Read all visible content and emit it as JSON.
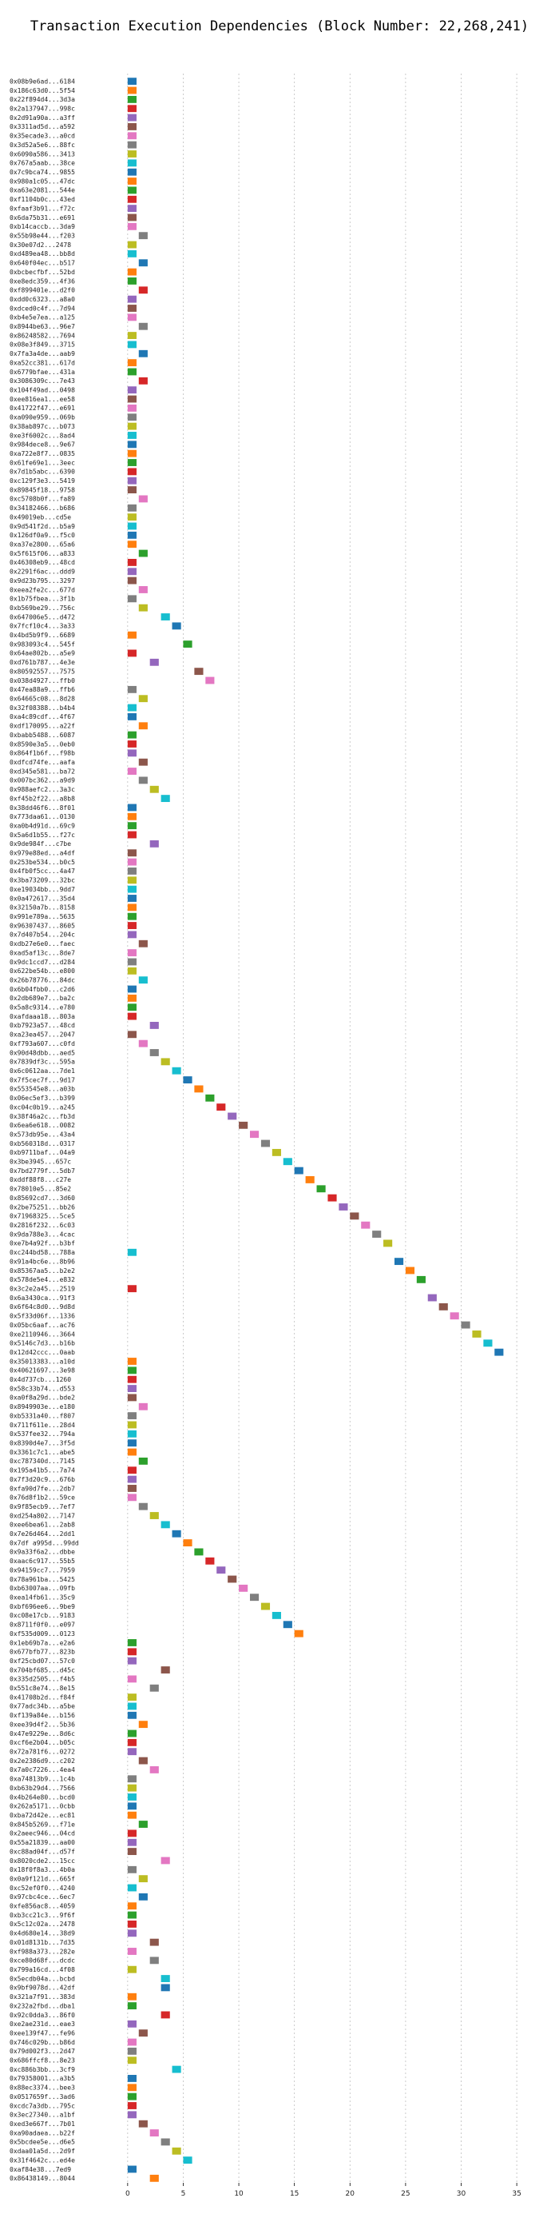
{
  "chart_data": {
    "type": "bar",
    "title": "Transaction Execution Dependencies (Block Number: 22,268,241)",
    "xlabel": "",
    "ylabel": "",
    "xlim": [
      -2,
      36.5
    ],
    "xticks": [
      0,
      5,
      10,
      15,
      20,
      25,
      30,
      35
    ],
    "grid": true,
    "bar_width": 1,
    "palette": [
      "#1f77b4",
      "#ff7f0e",
      "#2ca02c",
      "#d62728",
      "#9467bd",
      "#8c564b",
      "#e377c2",
      "#7f7f7f",
      "#bcbd22",
      "#17becf"
    ],
    "transactions": [
      {
        "label": "0x08b9e6ad...6184",
        "start": 0
      },
      {
        "label": "0x186c63d0...5f54",
        "start": 0
      },
      {
        "label": "0x22f894d4...3d3a",
        "start": 0
      },
      {
        "label": "0x2a137947...998c",
        "start": 0
      },
      {
        "label": "0x2d91a90a...a3ff",
        "start": 0
      },
      {
        "label": "0x3311ad5d...a592",
        "start": 0
      },
      {
        "label": "0x35ecade3...a0cd",
        "start": 0
      },
      {
        "label": "0x3d52a5e6...88fc",
        "start": 0
      },
      {
        "label": "0x6090a586...3413",
        "start": 0
      },
      {
        "label": "0x767a5aab...38ce",
        "start": 0
      },
      {
        "label": "0x7c9bca74...9855",
        "start": 0
      },
      {
        "label": "0x980a1c05...47dc",
        "start": 0
      },
      {
        "label": "0xa63e2081...544e",
        "start": 0
      },
      {
        "label": "0xf1104b0c...43ed",
        "start": 0
      },
      {
        "label": "0xfaaf3b91...f72c",
        "start": 0
      },
      {
        "label": "0x6da75b31...e691",
        "start": 0
      },
      {
        "label": "0xb14caccb...3da9",
        "start": 0
      },
      {
        "label": "0x55b98e44...f203",
        "start": 1
      },
      {
        "label": "0x30e07d2...2478",
        "start": 0
      },
      {
        "label": "0xd489ea48...bb8d",
        "start": 0
      },
      {
        "label": "0x640f04ec...b517",
        "start": 1
      },
      {
        "label": "0xbcbecfbf...52bd",
        "start": 0
      },
      {
        "label": "0xe8edc359...4f36",
        "start": 0
      },
      {
        "label": "0xf899401e...d2f0",
        "start": 1
      },
      {
        "label": "0xdd0c6323...a8a0",
        "start": 0
      },
      {
        "label": "0xdced0c4f...7d94",
        "start": 0
      },
      {
        "label": "0xb4e5e7ea...a125",
        "start": 0
      },
      {
        "label": "0x8944be63...96e7",
        "start": 1
      },
      {
        "label": "0x86248582...7694",
        "start": 0
      },
      {
        "label": "0x08e3f849...3715",
        "start": 0
      },
      {
        "label": "0x7fa3a4de...aab9",
        "start": 1
      },
      {
        "label": "0xa52cc381...617d",
        "start": 0
      },
      {
        "label": "0x6779bfae...431a",
        "start": 0
      },
      {
        "label": "0x3086309c...7e43",
        "start": 1
      },
      {
        "label": "0x104f49ad...0498",
        "start": 0
      },
      {
        "label": "0xee816ea1...ee58",
        "start": 0
      },
      {
        "label": "0x41722f47...e691",
        "start": 0
      },
      {
        "label": "0xa090e959...069b",
        "start": 0
      },
      {
        "label": "0x38ab897c...b073",
        "start": 0
      },
      {
        "label": "0xe3f6002c...8ad4",
        "start": 0
      },
      {
        "label": "0x984dece8...9e67",
        "start": 0
      },
      {
        "label": "0xa722e8f7...0835",
        "start": 0
      },
      {
        "label": "0x61fe69e1...3eec",
        "start": 0
      },
      {
        "label": "0x7d1b5abc...6390",
        "start": 0
      },
      {
        "label": "0xc129f3e3...5419",
        "start": 0
      },
      {
        "label": "0x89845f18...9758",
        "start": 0
      },
      {
        "label": "0xc5708b0f...fa89",
        "start": 1
      },
      {
        "label": "0x34182466...b686",
        "start": 0
      },
      {
        "label": "0x49019eb...cd5e",
        "start": 0
      },
      {
        "label": "0x9d541f2d...b5a9",
        "start": 0
      },
      {
        "label": "0x126df0a9...f5c0",
        "start": 0
      },
      {
        "label": "0xa37e2800...65a6",
        "start": 0
      },
      {
        "label": "0x5f615f06...a833",
        "start": 1
      },
      {
        "label": "0x46308eb9...48cd",
        "start": 0
      },
      {
        "label": "0x2291f6ac...ddd9",
        "start": 0
      },
      {
        "label": "0x9d23b795...3297",
        "start": 0
      },
      {
        "label": "0xeea2fe2c...677d",
        "start": 1
      },
      {
        "label": "0x1b75fbea...3f1b",
        "start": 0
      },
      {
        "label": "0xb569be29...756c",
        "start": 1
      },
      {
        "label": "0x647006e5...d472",
        "start": 3
      },
      {
        "label": "0x7fcf10c4...3a33",
        "start": 4
      },
      {
        "label": "0x4bd5b9f9...6689",
        "start": 0
      },
      {
        "label": "0x983093c4...545f",
        "start": 5
      },
      {
        "label": "0x64ae802b...a5e9",
        "start": 0
      },
      {
        "label": "0xd761b787...4e3e",
        "start": 2
      },
      {
        "label": "0x80592557...7575",
        "start": 6
      },
      {
        "label": "0x038d4927...ffb0",
        "start": 7
      },
      {
        "label": "0x47ea88a9...ffb6",
        "start": 0
      },
      {
        "label": "0x64665c08...8d28",
        "start": 1
      },
      {
        "label": "0x32f08388...b4b4",
        "start": 0
      },
      {
        "label": "0xa4c89cdf...4f67",
        "start": 0
      },
      {
        "label": "0xdf170095...a22f",
        "start": 1
      },
      {
        "label": "0xbabb5488...6087",
        "start": 0
      },
      {
        "label": "0x8590e3a5...0eb0",
        "start": 0
      },
      {
        "label": "0x864f1b6f...f98b",
        "start": 0
      },
      {
        "label": "0xdfcd74fe...aafa",
        "start": 1
      },
      {
        "label": "0xd345e581...ba72",
        "start": 0
      },
      {
        "label": "0x007bc362...a9d9",
        "start": 1
      },
      {
        "label": "0x988aefc2...3a3c",
        "start": 2
      },
      {
        "label": "0xf45b2f22...a8b8",
        "start": 3
      },
      {
        "label": "0x38dd46f6...8f01",
        "start": 0
      },
      {
        "label": "0x773daa61...0130",
        "start": 0
      },
      {
        "label": "0xa0b4d91d...69c9",
        "start": 0
      },
      {
        "label": "0x5a6d1b55...f27c",
        "start": 0
      },
      {
        "label": "0x9de984f...c7be",
        "start": 2
      },
      {
        "label": "0x979e88ed...a4df",
        "start": 0
      },
      {
        "label": "0x253be534...b0c5",
        "start": 0
      },
      {
        "label": "0x4fb0f5cc...4a47",
        "start": 0
      },
      {
        "label": "0x3ba73209...32bc",
        "start": 0
      },
      {
        "label": "0xe19034bb...9dd7",
        "start": 0
      },
      {
        "label": "0x0a472617...35d4",
        "start": 0
      },
      {
        "label": "0x32150a7b...8158",
        "start": 0
      },
      {
        "label": "0x991e789a...5635",
        "start": 0
      },
      {
        "label": "0x96307437...8605",
        "start": 0
      },
      {
        "label": "0x7d407b54...204c",
        "start": 0
      },
      {
        "label": "0xdb27e6e0...faec",
        "start": 1
      },
      {
        "label": "0xad5af13c...8de7",
        "start": 0
      },
      {
        "label": "0x9dc1ccd7...d284",
        "start": 0
      },
      {
        "label": "0x622be54b...e800",
        "start": 0
      },
      {
        "label": "0x26b78776...84dc",
        "start": 1
      },
      {
        "label": "0x6b04fbb0...c2d6",
        "start": 0
      },
      {
        "label": "0x2db689e7...ba2c",
        "start": 0
      },
      {
        "label": "0x5a8c9314...e780",
        "start": 0
      },
      {
        "label": "0xafdaaa18...803a",
        "start": 0
      },
      {
        "label": "0xb7923a57...48cd",
        "start": 2
      },
      {
        "label": "0xa23ea457...2047",
        "start": 0
      },
      {
        "label": "0xf793a607...c0fd",
        "start": 1
      },
      {
        "label": "0x90d48dbb...aed5",
        "start": 2
      },
      {
        "label": "0x7839df3c...595a",
        "start": 3
      },
      {
        "label": "0x6c0612aa...7de1",
        "start": 4
      },
      {
        "label": "0x7f5cec7f...9d17",
        "start": 5
      },
      {
        "label": "0x553545e8...a03b",
        "start": 6
      },
      {
        "label": "0x06ec5ef3...b399",
        "start": 7
      },
      {
        "label": "0xc04c0b19...a245",
        "start": 8
      },
      {
        "label": "0x38f46a2c...fb3d",
        "start": 9
      },
      {
        "label": "0x6ea6e618...0082",
        "start": 10
      },
      {
        "label": "0x573db95e...43a4",
        "start": 11
      },
      {
        "label": "0xb560318d...0317",
        "start": 12
      },
      {
        "label": "0xb9711baf...04a9",
        "start": 13
      },
      {
        "label": "0x3be3945...657c",
        "start": 14
      },
      {
        "label": "0x7bd2779f...5db7",
        "start": 15
      },
      {
        "label": "0xddf88f8...c27e",
        "start": 16
      },
      {
        "label": "0x78010e5...85e2",
        "start": 17
      },
      {
        "label": "0x85692cd7...3d60",
        "start": 18
      },
      {
        "label": "0x2be75251...bb26",
        "start": 19
      },
      {
        "label": "0x71968325...5ce5",
        "start": 20
      },
      {
        "label": "0x2816f232...6c03",
        "start": 21
      },
      {
        "label": "0x9da788e3...4cac",
        "start": 22
      },
      {
        "label": "0xe7b4a92f...b3bf",
        "start": 23
      },
      {
        "label": "0xc244bd58...788a",
        "start": 0
      },
      {
        "label": "0x91a4bc6e...8b96",
        "start": 24
      },
      {
        "label": "0x85367aa5...b2e2",
        "start": 25
      },
      {
        "label": "0x578de5e4...e832",
        "start": 26
      },
      {
        "label": "0x3c2e2a45...2519",
        "start": 0
      },
      {
        "label": "0x6a3430ca...91f3",
        "start": 27
      },
      {
        "label": "0x6f64c8d0...9d8d",
        "start": 28
      },
      {
        "label": "0x5f33d06f...1336",
        "start": 29
      },
      {
        "label": "0x05bc6aaf...ac76",
        "start": 30
      },
      {
        "label": "0xe2110946...3664",
        "start": 31
      },
      {
        "label": "0x5146c7d3...b16b",
        "start": 32
      },
      {
        "label": "0x12d42ccc...0aab",
        "start": 33
      },
      {
        "label": "0x35013383...a10d",
        "start": 0
      },
      {
        "label": "0x40621697...3e98",
        "start": 0
      },
      {
        "label": "0x4d737cb...1260",
        "start": 0
      },
      {
        "label": "0x58c33b74...d553",
        "start": 0
      },
      {
        "label": "0xa0f8a29d...bde2",
        "start": 0
      },
      {
        "label": "0x8949903e...e180",
        "start": 1
      },
      {
        "label": "0xb5331a40...f807",
        "start": 0
      },
      {
        "label": "0x711f611e...28d4",
        "start": 0
      },
      {
        "label": "0x537fee32...794a",
        "start": 0
      },
      {
        "label": "0x8390d4e7...3f5d",
        "start": 0
      },
      {
        "label": "0x3361c7c1...abe5",
        "start": 0
      },
      {
        "label": "0xc787340d...7145",
        "start": 1
      },
      {
        "label": "0x195a41b5...7a74",
        "start": 0
      },
      {
        "label": "0x7f3d20c9...676b",
        "start": 0
      },
      {
        "label": "0xfa90d7fe...2db7",
        "start": 0
      },
      {
        "label": "0x76d8f1b2...59ce",
        "start": 0
      },
      {
        "label": "0x9f85ecb9...7ef7",
        "start": 1
      },
      {
        "label": "0xd254a802...7147",
        "start": 2
      },
      {
        "label": "0xee6bea61...2ab8",
        "start": 3
      },
      {
        "label": "0x7e26d464...2dd1",
        "start": 4
      },
      {
        "label": "0x7df a995d...99dd",
        "start": 5
      },
      {
        "label": "0x9a33f6a2...dbbe",
        "start": 6
      },
      {
        "label": "0xaac6c917...55b5",
        "start": 7
      },
      {
        "label": "0x94159cc7...7959",
        "start": 8
      },
      {
        "label": "0x78a961ba...5425",
        "start": 9
      },
      {
        "label": "0xb63007aa...09fb",
        "start": 10
      },
      {
        "label": "0xea14fb61...35c9",
        "start": 11
      },
      {
        "label": "0xbf696ee6...9be9",
        "start": 12
      },
      {
        "label": "0xc08e17cb...9183",
        "start": 13
      },
      {
        "label": "0x8711f0f0...e097",
        "start": 14
      },
      {
        "label": "0xf535d009...0123",
        "start": 15
      },
      {
        "label": "0x1eb69b7a...e2a6",
        "start": 0
      },
      {
        "label": "0x677bfb77...823b",
        "start": 0
      },
      {
        "label": "0xf25cbd07...57c0",
        "start": 0
      },
      {
        "label": "0x704bf685...d45c",
        "start": 3
      },
      {
        "label": "0x335d2505...f4b5",
        "start": 0
      },
      {
        "label": "0x551c8e74...8e15",
        "start": 2
      },
      {
        "label": "0x41708b2d...f84f",
        "start": 0
      },
      {
        "label": "0x77adc34b...a5be",
        "start": 0
      },
      {
        "label": "0xf139a84e...b156",
        "start": 0
      },
      {
        "label": "0xee39d4f2...5b36",
        "start": 1
      },
      {
        "label": "0x47e9229e...8d6c",
        "start": 0
      },
      {
        "label": "0xcf6e2b04...b05c",
        "start": 0
      },
      {
        "label": "0x72a781f6...0272",
        "start": 0
      },
      {
        "label": "0x2e2386d9...c202",
        "start": 1
      },
      {
        "label": "0x7a0c7226...4ea4",
        "start": 2
      },
      {
        "label": "0xa74813b9...1c4b",
        "start": 0
      },
      {
        "label": "0xb63b29d4...7566",
        "start": 0
      },
      {
        "label": "0x4b264e80...bcd0",
        "start": 0
      },
      {
        "label": "0x262a5171...0cbb",
        "start": 0
      },
      {
        "label": "0xba72d42e...ec81",
        "start": 0
      },
      {
        "label": "0x845b5269...f71e",
        "start": 1
      },
      {
        "label": "0x2aeec946...04cd",
        "start": 0
      },
      {
        "label": "0x55a21839...aa00",
        "start": 0
      },
      {
        "label": "0xc88ad04f...d57f",
        "start": 0
      },
      {
        "label": "0x8020cde2...15cc",
        "start": 3
      },
      {
        "label": "0x18f0f8a3...4b0a",
        "start": 0
      },
      {
        "label": "0x0a9f121d...665f",
        "start": 1
      },
      {
        "label": "0xc52ef0f0...4240",
        "start": 0
      },
      {
        "label": "0x97cbc4ce...6ec7",
        "start": 1
      },
      {
        "label": "0xfe856ac8...4059",
        "start": 0
      },
      {
        "label": "0xb3cc21c3...9f6f",
        "start": 0
      },
      {
        "label": "0x5c12c02a...2478",
        "start": 0
      },
      {
        "label": "0x4d680e14...38d9",
        "start": 0
      },
      {
        "label": "0x01d8131b...7d35",
        "start": 2
      },
      {
        "label": "0xf988a373...282e",
        "start": 0
      },
      {
        "label": "0xce80d68f...dcdc",
        "start": 2
      },
      {
        "label": "0x799a16cd...4f08",
        "start": 0
      },
      {
        "label": "0x5ecdb04a...bcbd",
        "start": 3
      },
      {
        "label": "0x9bf9078d...42df",
        "start": 3
      },
      {
        "label": "0x321a7f91...383d",
        "start": 0
      },
      {
        "label": "0x232a2fbd...dba1",
        "start": 0
      },
      {
        "label": "0x92c0dda3...86f0",
        "start": 3
      },
      {
        "label": "0xe2ae231d...eae3",
        "start": 0
      },
      {
        "label": "0xee139f47...fe96",
        "start": 1
      },
      {
        "label": "0x746c029b...b86d",
        "start": 0
      },
      {
        "label": "0x79d002f3...2d47",
        "start": 0
      },
      {
        "label": "0x686ffcf8...8e23",
        "start": 0
      },
      {
        "label": "0xc886b3bb...3cf9",
        "start": 4
      },
      {
        "label": "0x79358001...a3b5",
        "start": 0
      },
      {
        "label": "0x88ec3374...bee3",
        "start": 0
      },
      {
        "label": "0x0517659f...3ad6",
        "start": 0
      },
      {
        "label": "0xcdc7a3db...795c",
        "start": 0
      },
      {
        "label": "0x3ec27340...a1bf",
        "start": 0
      },
      {
        "label": "0xed3e667f...7b01",
        "start": 1
      },
      {
        "label": "0xa90adaea...b22f",
        "start": 2
      },
      {
        "label": "0x5bcdee5e...d6e5",
        "start": 3
      },
      {
        "label": "0xdaa01a5d...2d9f",
        "start": 4
      },
      {
        "label": "0x31f4642c...ed4e",
        "start": 5
      },
      {
        "label": "0xaf84e38...7ed9",
        "start": 0
      },
      {
        "label": "0x86438149...8044",
        "start": 2
      }
    ]
  }
}
